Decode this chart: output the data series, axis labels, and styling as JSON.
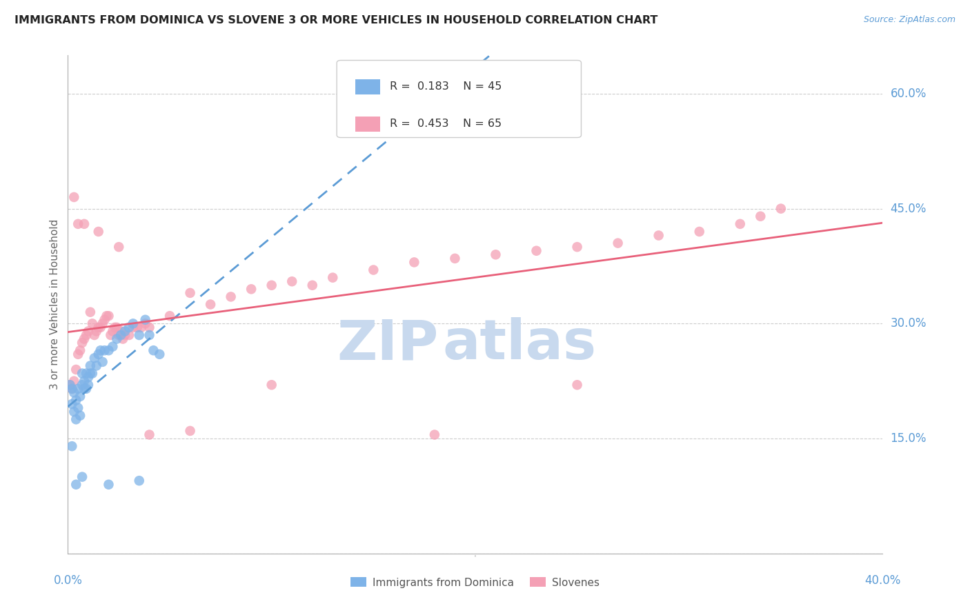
{
  "title": "IMMIGRANTS FROM DOMINICA VS SLOVENE 3 OR MORE VEHICLES IN HOUSEHOLD CORRELATION CHART",
  "source": "Source: ZipAtlas.com",
  "ylabel": "3 or more Vehicles in Household",
  "ytick_vals": [
    0.0,
    0.15,
    0.3,
    0.45,
    0.6
  ],
  "ytick_labels": [
    "",
    "15.0%",
    "30.0%",
    "45.0%",
    "60.0%"
  ],
  "xtick_labels": [
    "0.0%",
    "40.0%"
  ],
  "xmin": 0.0,
  "xmax": 0.4,
  "ymin": 0.0,
  "ymax": 0.65,
  "r1": 0.183,
  "n1": 45,
  "r2": 0.453,
  "n2": 65,
  "color_blue": "#7EB3E8",
  "color_pink": "#F4A0B5",
  "color_blue_line": "#5B9BD5",
  "color_pink_line": "#E8607A",
  "color_axis_labels": "#5B9BD5",
  "watermark_color": "#C8D9EE",
  "background_color": "#FFFFFF",
  "dominica_x": [
    0.001,
    0.002,
    0.002,
    0.003,
    0.003,
    0.004,
    0.004,
    0.005,
    0.005,
    0.006,
    0.006,
    0.007,
    0.007,
    0.008,
    0.008,
    0.009,
    0.009,
    0.01,
    0.01,
    0.011,
    0.011,
    0.012,
    0.013,
    0.014,
    0.015,
    0.016,
    0.017,
    0.018,
    0.02,
    0.022,
    0.024,
    0.026,
    0.028,
    0.03,
    0.032,
    0.035,
    0.038,
    0.04,
    0.042,
    0.045,
    0.002,
    0.004,
    0.007,
    0.02,
    0.035
  ],
  "dominica_y": [
    0.22,
    0.215,
    0.195,
    0.21,
    0.185,
    0.2,
    0.175,
    0.215,
    0.19,
    0.205,
    0.18,
    0.22,
    0.235,
    0.215,
    0.225,
    0.215,
    0.235,
    0.22,
    0.23,
    0.235,
    0.245,
    0.235,
    0.255,
    0.245,
    0.26,
    0.265,
    0.25,
    0.265,
    0.265,
    0.27,
    0.28,
    0.285,
    0.29,
    0.295,
    0.3,
    0.285,
    0.305,
    0.285,
    0.265,
    0.26,
    0.14,
    0.09,
    0.1,
    0.09,
    0.095
  ],
  "slovene_x": [
    0.001,
    0.002,
    0.003,
    0.004,
    0.005,
    0.006,
    0.007,
    0.008,
    0.009,
    0.01,
    0.011,
    0.012,
    0.013,
    0.014,
    0.015,
    0.016,
    0.017,
    0.018,
    0.019,
    0.02,
    0.021,
    0.022,
    0.023,
    0.024,
    0.025,
    0.026,
    0.027,
    0.028,
    0.03,
    0.032,
    0.034,
    0.036,
    0.038,
    0.04,
    0.05,
    0.06,
    0.07,
    0.08,
    0.09,
    0.1,
    0.11,
    0.12,
    0.13,
    0.15,
    0.17,
    0.19,
    0.21,
    0.23,
    0.25,
    0.27,
    0.29,
    0.31,
    0.33,
    0.34,
    0.35,
    0.003,
    0.005,
    0.008,
    0.015,
    0.025,
    0.04,
    0.06,
    0.1,
    0.18,
    0.25
  ],
  "slovene_y": [
    0.22,
    0.215,
    0.225,
    0.24,
    0.26,
    0.265,
    0.275,
    0.28,
    0.285,
    0.29,
    0.315,
    0.3,
    0.285,
    0.29,
    0.295,
    0.295,
    0.3,
    0.305,
    0.31,
    0.31,
    0.285,
    0.29,
    0.295,
    0.295,
    0.285,
    0.29,
    0.28,
    0.285,
    0.285,
    0.295,
    0.295,
    0.295,
    0.3,
    0.295,
    0.31,
    0.34,
    0.325,
    0.335,
    0.345,
    0.35,
    0.355,
    0.35,
    0.36,
    0.37,
    0.38,
    0.385,
    0.39,
    0.395,
    0.4,
    0.405,
    0.415,
    0.42,
    0.43,
    0.44,
    0.45,
    0.465,
    0.43,
    0.43,
    0.42,
    0.4,
    0.155,
    0.16,
    0.22,
    0.155,
    0.22
  ]
}
